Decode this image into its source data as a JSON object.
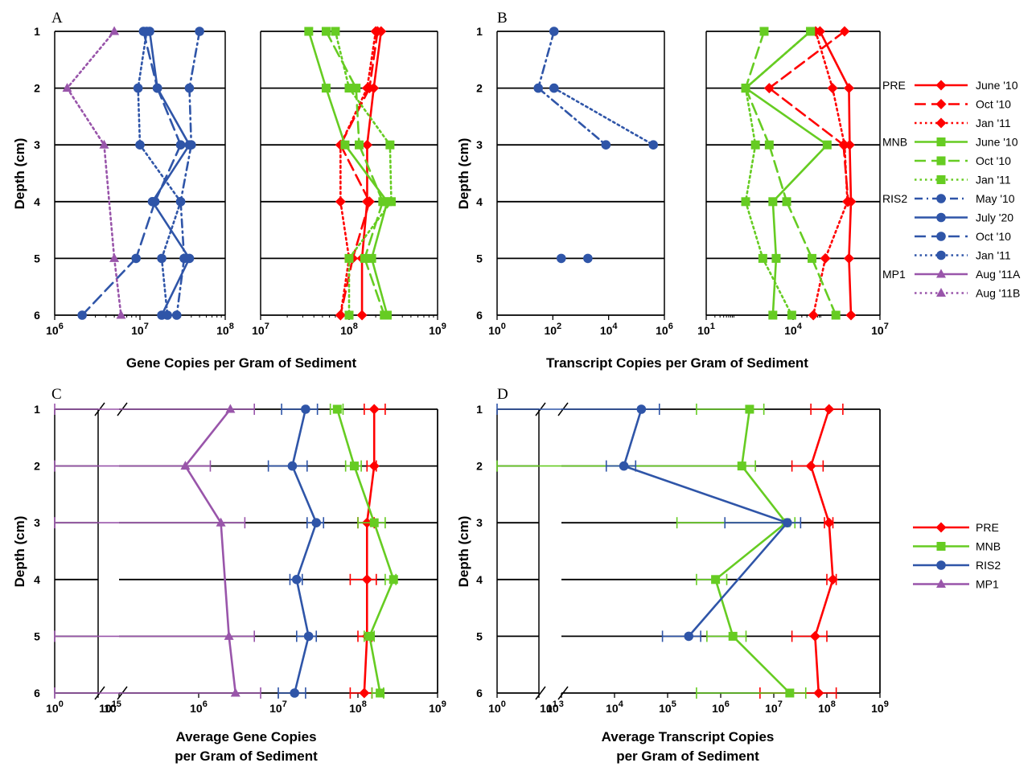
{
  "figure": {
    "panel_labels": [
      "A",
      "B",
      "C",
      "D"
    ]
  },
  "colors": {
    "PRE": "#ff0000",
    "MNB": "#66cc22",
    "RIS2": "#2f55a8",
    "MP1": "#9955aa"
  },
  "legend_top": {
    "groups": [
      {
        "label": "PRE",
        "entries": [
          {
            "text": "June '10",
            "color": "#ff0000",
            "dash": "solid",
            "marker": "diamond"
          },
          {
            "text": "Oct '10",
            "color": "#ff0000",
            "dash": "dashed",
            "marker": "diamond"
          },
          {
            "text": "Jan '11",
            "color": "#ff0000",
            "dash": "dotted",
            "marker": "diamond"
          }
        ]
      },
      {
        "label": "MNB",
        "entries": [
          {
            "text": "June '10",
            "color": "#66cc22",
            "dash": "solid",
            "marker": "square"
          },
          {
            "text": "Oct '10",
            "color": "#66cc22",
            "dash": "dashed",
            "marker": "square"
          },
          {
            "text": "Jan '11",
            "color": "#66cc22",
            "dash": "dotted",
            "marker": "square"
          }
        ]
      },
      {
        "label": "RIS2",
        "entries": [
          {
            "text": "May '10",
            "color": "#2f55a8",
            "dash": "dashdot",
            "marker": "circle"
          },
          {
            "text": "July '20",
            "color": "#2f55a8",
            "dash": "solid",
            "marker": "circle"
          },
          {
            "text": "Oct '10",
            "color": "#2f55a8",
            "dash": "dashed",
            "marker": "circle"
          },
          {
            "text": "Jan '11",
            "color": "#2f55a8",
            "dash": "dotted",
            "marker": "circle"
          }
        ]
      },
      {
        "label": "MP1",
        "entries": [
          {
            "text": "Aug '11A",
            "color": "#9955aa",
            "dash": "solid",
            "marker": "triangle"
          },
          {
            "text": "Aug '11B",
            "color": "#9955aa",
            "dash": "dotted",
            "marker": "triangle"
          }
        ]
      }
    ]
  },
  "legend_bottom": [
    {
      "text": "PRE",
      "color": "#ff0000",
      "marker": "diamond"
    },
    {
      "text": "MNB",
      "color": "#66cc22",
      "marker": "square"
    },
    {
      "text": "RIS2",
      "color": "#2f55a8",
      "marker": "circle"
    },
    {
      "text": "MP1",
      "color": "#9955aa",
      "marker": "triangle"
    }
  ],
  "chart_data": [
    {
      "panel": "A",
      "type": "line",
      "sub": "A-left",
      "ylabel": "Depth (cm)",
      "depths": [
        1,
        2,
        3,
        4,
        5,
        6
      ],
      "xscale": "log",
      "xlim": [
        1000000,
        100000000
      ],
      "xticks": [
        "10⁶",
        "10⁷",
        "10⁸"
      ],
      "series": [
        {
          "group": "RIS2",
          "dash": "dashdot",
          "marker": "circle",
          "color": "#2f55a8",
          "x": [
            50000000,
            38000000,
            40000000,
            30000000,
            33000000,
            27000000
          ],
          "y": [
            1,
            2,
            3,
            4,
            5,
            6
          ]
        },
        {
          "group": "RIS2",
          "dash": "solid",
          "marker": "circle",
          "color": "#2f55a8",
          "x": [
            13000000,
            16000000,
            38000000,
            14000000,
            38000000,
            18000000
          ],
          "y": [
            1,
            2,
            3,
            4,
            5,
            6
          ]
        },
        {
          "group": "RIS2",
          "dash": "dashed",
          "marker": "circle",
          "color": "#2f55a8",
          "x": [
            11000000,
            16000000,
            30000000,
            15000000,
            9000000,
            2100000
          ],
          "y": [
            1,
            2,
            3,
            4,
            5,
            6
          ]
        },
        {
          "group": "RIS2",
          "dash": "dotted",
          "marker": "circle",
          "color": "#2f55a8",
          "x": [
            12000000,
            9500000,
            10000000,
            30000000,
            18000000,
            21000000
          ],
          "y": [
            1,
            2,
            3,
            4,
            5,
            6
          ]
        },
        {
          "group": "MP1",
          "dash": "dotted",
          "marker": "triangle",
          "color": "#9955aa",
          "x": [
            5000000,
            1400000,
            3800000,
            null,
            5000000,
            6000000
          ],
          "y": [
            1,
            2,
            3,
            4,
            5,
            6
          ]
        }
      ]
    },
    {
      "panel": "A",
      "type": "line",
      "sub": "A-right",
      "xscale": "log",
      "xlim": [
        10000000,
        1000000000
      ],
      "xticks": [
        "10⁷",
        "10⁸",
        "10⁹"
      ],
      "xlabel": "Gene Copies per Gram of Sediment",
      "series": [
        {
          "group": "PRE",
          "dash": "solid",
          "marker": "diamond",
          "color": "#ff0000",
          "x": [
            230000000,
            190000000,
            160000000,
            160000000,
            140000000,
            140000000
          ],
          "y": [
            1,
            2,
            3,
            4,
            5,
            6
          ]
        },
        {
          "group": "PRE",
          "dash": "dashed",
          "marker": "diamond",
          "color": "#ff0000",
          "x": [
            210000000,
            170000000,
            80000000,
            170000000,
            110000000,
            80000000
          ],
          "y": [
            1,
            2,
            3,
            4,
            5,
            6
          ]
        },
        {
          "group": "PRE",
          "dash": "dotted",
          "marker": "diamond",
          "color": "#ff0000",
          "x": [
            200000000,
            160000000,
            80000000,
            80000000,
            100000000,
            80000000
          ],
          "y": [
            1,
            2,
            3,
            4,
            5,
            6
          ]
        },
        {
          "group": "MNB",
          "dash": "solid",
          "marker": "square",
          "color": "#66cc22",
          "x": [
            35000000,
            55000000,
            90000000,
            270000000,
            180000000,
            270000000
          ],
          "y": [
            1,
            2,
            3,
            4,
            5,
            6
          ]
        },
        {
          "group": "MNB",
          "dash": "dashed",
          "marker": "square",
          "color": "#66cc22",
          "x": [
            55000000,
            120000000,
            130000000,
            240000000,
            150000000,
            250000000
          ],
          "y": [
            1,
            2,
            3,
            4,
            5,
            6
          ]
        },
        {
          "group": "MNB",
          "dash": "dotted",
          "marker": "square",
          "color": "#66cc22",
          "x": [
            70000000,
            100000000,
            290000000,
            300000000,
            100000000,
            100000000
          ],
          "y": [
            1,
            2,
            3,
            4,
            5,
            6
          ]
        }
      ]
    },
    {
      "panel": "B",
      "type": "line",
      "sub": "B-left",
      "ylabel": "Depth (cm)",
      "depths": [
        1,
        2,
        3,
        4,
        5,
        6
      ],
      "xscale": "log",
      "xlim": [
        1,
        1000000
      ],
      "xticks": [
        "10⁰",
        "10²",
        "10⁴",
        "10⁶"
      ],
      "series": [
        {
          "group": "RIS2",
          "dash": "dashdot",
          "marker": "circle",
          "color": "#2f55a8",
          "x": [
            110,
            30,
            8000,
            null,
            null,
            null
          ],
          "y": [
            1,
            2,
            3,
            4,
            5,
            6
          ]
        },
        {
          "group": "RIS2",
          "dash": "dotted",
          "marker": "circle",
          "color": "#2f55a8",
          "x": [
            null,
            110,
            400000,
            null,
            null,
            null
          ],
          "y": [
            1,
            2,
            3,
            4,
            5,
            6
          ]
        },
        {
          "group": "RIS2",
          "dash": "solid",
          "marker": "circle",
          "color": "#2f55a8",
          "x": [
            null,
            null,
            null,
            null,
            200,
            null
          ],
          "y": [
            1,
            2,
            3,
            4,
            5,
            6
          ]
        },
        {
          "group": "RIS2",
          "dash": "dashed",
          "marker": "circle",
          "color": "#2f55a8",
          "x": [
            null,
            null,
            null,
            null,
            1800,
            null
          ],
          "y": [
            1,
            2,
            3,
            4,
            5,
            6
          ]
        }
      ]
    },
    {
      "panel": "B",
      "type": "line",
      "sub": "B-right",
      "xscale": "log",
      "xlim": [
        10,
        10000000
      ],
      "xticks": [
        "10³",
        "10⁵",
        "10⁷"
      ],
      "xlabel": "Transcript Copies per Gram of Sediment",
      "series": [
        {
          "group": "PRE",
          "dash": "solid",
          "marker": "diamond",
          "color": "#ff0000",
          "x": [
            85000,
            850000,
            900000,
            1000000,
            850000,
            1000000
          ],
          "y": [
            1,
            2,
            3,
            4,
            5,
            6
          ]
        },
        {
          "group": "PRE",
          "dash": "dashed",
          "marker": "diamond",
          "color": "#ff0000",
          "x": [
            600000,
            1500,
            550000,
            800000,
            null,
            null
          ],
          "y": [
            1,
            2,
            3,
            4,
            5,
            6
          ]
        },
        {
          "group": "PRE",
          "dash": "dotted",
          "marker": "diamond",
          "color": "#ff0000",
          "x": [
            60000,
            230000,
            600000,
            750000,
            130000,
            50000
          ],
          "y": [
            1,
            2,
            3,
            4,
            5,
            6
          ]
        },
        {
          "group": "MNB",
          "dash": "solid",
          "marker": "square",
          "color": "#66cc22",
          "x": [
            40000,
            230,
            150000,
            2000,
            2600,
            2000
          ],
          "y": [
            1,
            2,
            3,
            4,
            5,
            6
          ]
        },
        {
          "group": "MNB",
          "dash": "dashed",
          "marker": "square",
          "color": "#66cc22",
          "x": [
            1000,
            230,
            1500,
            6000,
            45000,
            300000
          ],
          "y": [
            1,
            2,
            3,
            4,
            5,
            6
          ]
        },
        {
          "group": "MNB",
          "dash": "dotted",
          "marker": "square",
          "color": "#66cc22",
          "x": [
            40000,
            230,
            500,
            230,
            900,
            9000
          ],
          "y": [
            1,
            2,
            3,
            4,
            5,
            6
          ]
        }
      ]
    },
    {
      "panel": "C",
      "type": "line",
      "sub": "C",
      "ylabel": "Depth (cm)",
      "depths": [
        1,
        2,
        3,
        4,
        5,
        6
      ],
      "xscale": "log-broken",
      "xticks": [
        "10⁰",
        "10¹",
        "10⁵",
        "10⁶",
        "10⁷",
        "10⁸",
        "10⁹"
      ],
      "xlabel_lines": [
        "Average Gene Copies",
        "per Gram of Sediment"
      ],
      "series": [
        {
          "group": "PRE",
          "marker": "diamond",
          "color": "#ff0000",
          "x": [
            160000000,
            160000000,
            130000000,
            130000000,
            130000000,
            120000000
          ],
          "err_lo": [
            120000000,
            130000000,
            100000000,
            80000000,
            100000000,
            80000000
          ],
          "err_hi": [
            220000000,
            170000000,
            160000000,
            170000000,
            150000000,
            150000000
          ],
          "y": [
            1,
            2,
            3,
            4,
            5,
            6
          ]
        },
        {
          "group": "MNB",
          "marker": "square",
          "color": "#66cc22",
          "x": [
            55000000,
            90000000,
            160000000,
            280000000,
            140000000,
            190000000
          ],
          "err_lo": [
            45000000,
            70000000,
            100000000,
            220000000,
            120000000,
            150000000
          ],
          "err_hi": [
            65000000,
            110000000,
            220000000,
            300000000,
            160000000,
            210000000
          ],
          "y": [
            1,
            2,
            3,
            4,
            5,
            6
          ]
        },
        {
          "group": "RIS2",
          "marker": "circle",
          "color": "#2f55a8",
          "x": [
            22000000,
            15000000,
            30000000,
            17000000,
            24000000,
            16000000
          ],
          "err_lo": [
            11000000,
            7500000,
            23000000,
            14000000,
            17000000,
            10000000
          ],
          "err_hi": [
            31000000,
            23000000,
            37000000,
            20000000,
            30000000,
            22000000
          ],
          "y": [
            1,
            2,
            3,
            4,
            5,
            6
          ]
        },
        {
          "group": "MP1",
          "marker": "triangle",
          "color": "#9955aa",
          "x": [
            2500000,
            680000,
            1900000,
            null,
            2400000,
            2900000
          ],
          "err_lo": [
            1,
            1,
            1,
            null,
            1,
            1
          ],
          "err_hi": [
            5000000,
            1400000,
            3800000,
            null,
            5000000,
            6000000
          ],
          "y": [
            1,
            2,
            3,
            4,
            5,
            6
          ]
        }
      ]
    },
    {
      "panel": "D",
      "type": "line",
      "sub": "D",
      "ylabel": "Depth (cm)",
      "depths": [
        1,
        2,
        3,
        4,
        5,
        6
      ],
      "xscale": "log-broken",
      "xticks": [
        "10⁰",
        "10¹",
        "10³",
        "10⁴",
        "10⁵",
        "10⁶",
        "10⁷",
        "10⁸",
        "10⁹"
      ],
      "xlabel_lines": [
        "Average Transcript Copies",
        "per Gram of Sediment"
      ],
      "series": [
        {
          "group": "PRE",
          "marker": "diamond",
          "color": "#ff0000",
          "x": [
            110000000,
            50000000,
            110000000,
            130000000,
            60000000,
            70000000
          ],
          "err_lo": [
            50000000,
            22000000,
            90000000,
            100000000,
            22000000,
            5500000
          ],
          "err_hi": [
            200000000,
            85000000,
            130000000,
            150000000,
            100000000,
            150000000
          ],
          "y": [
            1,
            2,
            3,
            4,
            5,
            6
          ]
        },
        {
          "group": "MNB",
          "marker": "square",
          "color": "#66cc22",
          "x": [
            3500000,
            2500000,
            17000000,
            800000,
            1700000,
            20000000
          ],
          "err_lo": [
            350000,
            1,
            150000,
            350000,
            550000,
            350000
          ],
          "err_hi": [
            6500000,
            4500000,
            25000000,
            1300000,
            3000000,
            40000000
          ],
          "y": [
            1,
            2,
            3,
            4,
            5,
            6
          ]
        },
        {
          "group": "RIS2",
          "marker": "circle",
          "color": "#2f55a8",
          "x": [
            32000,
            15000,
            18000000,
            null,
            250000,
            null
          ],
          "err_lo": [
            1,
            7000,
            1200000,
            null,
            80000,
            null
          ],
          "err_hi": [
            70000,
            25000,
            32000000,
            null,
            420000,
            null
          ],
          "y": [
            1,
            2,
            3,
            4,
            5,
            6
          ]
        }
      ]
    }
  ]
}
